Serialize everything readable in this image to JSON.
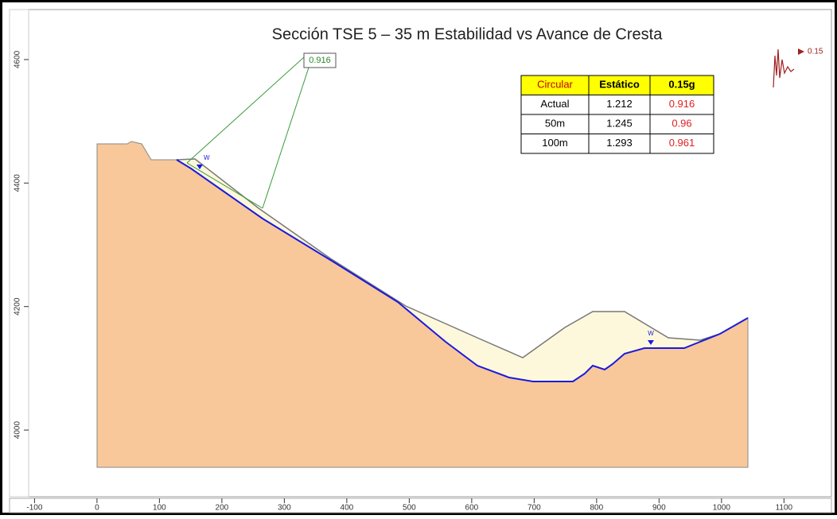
{
  "chart_data": {
    "type": "section",
    "title": "Sección TSE 5 – 35 m Estabilidad vs  Avance de Cresta",
    "xlim": [
      -140,
      1176
    ],
    "ylim": [
      3892,
      4681
    ],
    "xticks": [
      -100,
      0,
      100,
      200,
      300,
      400,
      500,
      600,
      700,
      800,
      900,
      1000,
      1100
    ],
    "yticks": [
      4000,
      4200,
      4400,
      4600
    ],
    "callout": "0.916",
    "seismic_label": "0.15",
    "water_label": "W",
    "table": {
      "header": [
        "Circular",
        "Estático",
        "0.15g"
      ],
      "rows": [
        [
          "Actual",
          "1.212",
          "0.916"
        ],
        [
          "50m",
          "1.245",
          "0.96"
        ],
        [
          "100m",
          "1.293",
          "0.961"
        ]
      ]
    }
  }
}
